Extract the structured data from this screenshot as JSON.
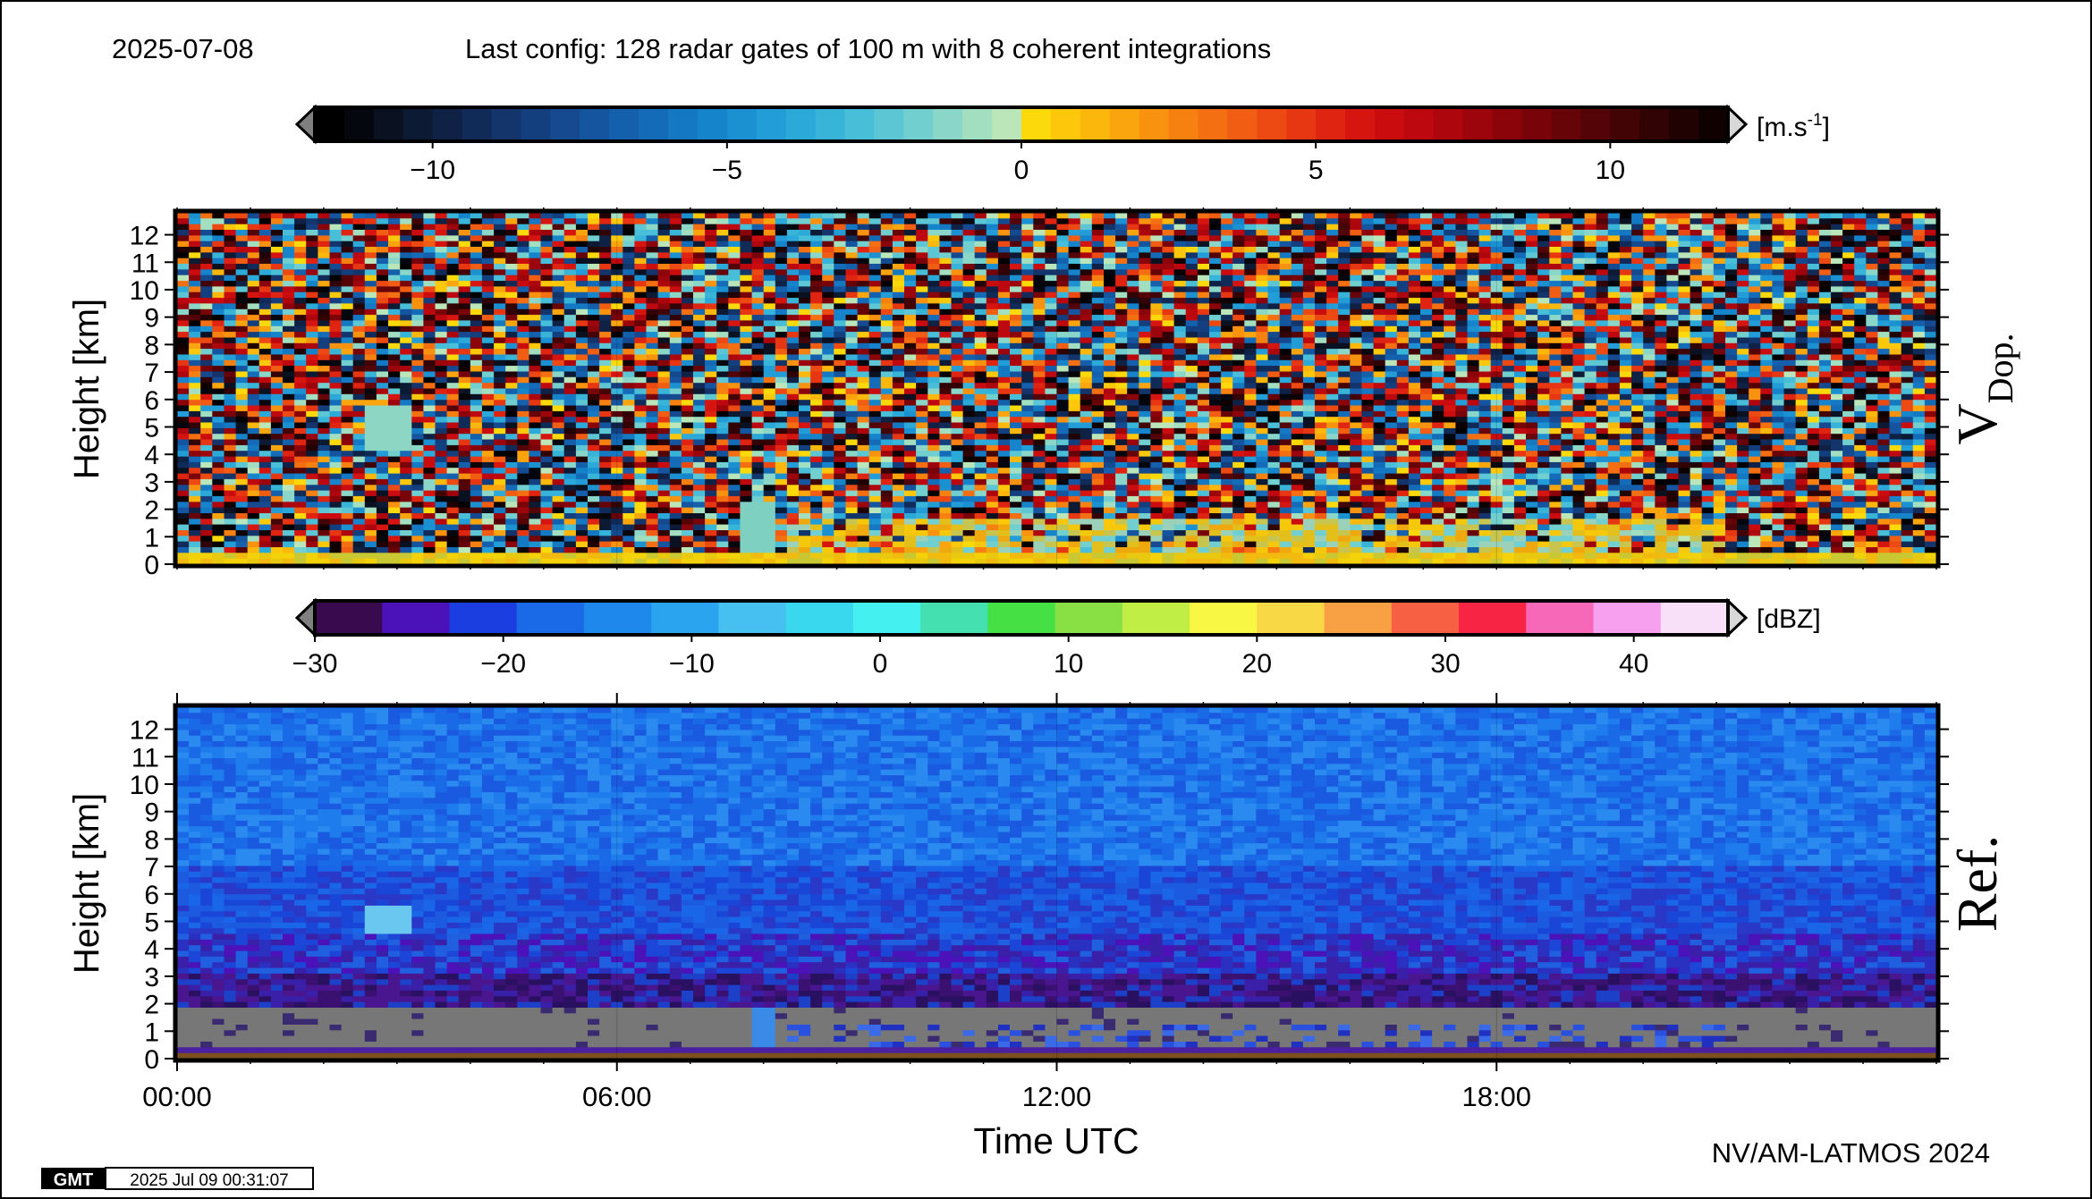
{
  "header": {
    "date": "2025-07-08",
    "config": "Last config: 128 radar gates of 100 m with 8 coherent integrations"
  },
  "footer": {
    "credit": "NV/AM-LATMOS 2024",
    "gmt_logo": "GMT",
    "timestamp": "2025 Jul 09 00:31:07"
  },
  "chart_data": [
    {
      "type": "heatmap",
      "panel_label": "V",
      "panel_label_sub": "Dop.",
      "ylabel": "Height [km]",
      "ylim": [
        0,
        12.8
      ],
      "yticks": [
        "0",
        "1",
        "2",
        "3",
        "4",
        "5",
        "6",
        "7",
        "8",
        "9",
        "10",
        "11",
        "12"
      ],
      "xlim_hours": [
        0,
        24
      ],
      "colorbar": {
        "unit": "[m.s",
        "unit_sup": "-1",
        "unit_end": "]",
        "range": [
          -12,
          12
        ],
        "ticks": [
          "−10",
          "−5",
          "0",
          "5",
          "10"
        ],
        "tick_values": [
          -10,
          -5,
          0,
          5,
          10
        ],
        "colors": [
          "#000000",
          "#05070f",
          "#0a1120",
          "#0d1a33",
          "#0f2245",
          "#112b58",
          "#13356b",
          "#143f7e",
          "#154a90",
          "#1555a0",
          "#1460ad",
          "#146cb8",
          "#1478c2",
          "#1684cb",
          "#1b91d2",
          "#229dd7",
          "#2ba9d9",
          "#38b4d9",
          "#49bed8",
          "#5cc6d4",
          "#72cfcf",
          "#8ad7c9",
          "#a2dfc1",
          "#bbe6b9",
          "#fcd90a",
          "#fdc80c",
          "#fcb70d",
          "#fba50e",
          "#f9930f",
          "#f78110",
          "#f46f11",
          "#f15d12",
          "#ec4a12",
          "#e63712",
          "#df2511",
          "#d61510",
          "#ca0c0f",
          "#bc080e",
          "#ad060d",
          "#9c050c",
          "#8a040a",
          "#780409",
          "#660408",
          "#540407",
          "#420405",
          "#310304",
          "#210202",
          "#100101"
        ]
      },
      "description_features": {
        "surface_layer_km": [
          0,
          0.5
        ],
        "precip_layer_km": [
          0.5,
          1.5
        ],
        "virga_at_hours": [
          3.0,
          8.0
        ]
      }
    },
    {
      "type": "heatmap",
      "panel_label": "Ref.",
      "xlabel": "Time UTC",
      "ylabel": "Height [km]",
      "ylim": [
        0,
        12.8
      ],
      "yticks": [
        "0",
        "1",
        "2",
        "3",
        "4",
        "5",
        "6",
        "7",
        "8",
        "9",
        "10",
        "11",
        "12"
      ],
      "xlim_hours": [
        0,
        24
      ],
      "xticks": [
        "00:00",
        "06:00",
        "12:00",
        "18:00"
      ],
      "xtick_values": [
        0,
        6,
        12,
        18
      ],
      "colorbar": {
        "unit": "[dBZ]",
        "range": [
          -30,
          45
        ],
        "ticks": [
          "−30",
          "−20",
          "−10",
          "0",
          "10",
          "20",
          "30",
          "40"
        ],
        "tick_values": [
          -30,
          -20,
          -10,
          0,
          10,
          20,
          30,
          40
        ],
        "colors": [
          "#3a0a4e",
          "#4a12b8",
          "#1a3ee0",
          "#1a6ae8",
          "#1e88ec",
          "#2aa4ee",
          "#46c0f0",
          "#3ad8ee",
          "#44f0f0",
          "#44e0b0",
          "#44e044",
          "#88e044",
          "#c0ee44",
          "#f8f844",
          "#f8d844",
          "#f8a044",
          "#f86044",
          "#f82444",
          "#f868b8",
          "#f8a0f0",
          "#f8e0f8"
        ]
      }
    }
  ]
}
